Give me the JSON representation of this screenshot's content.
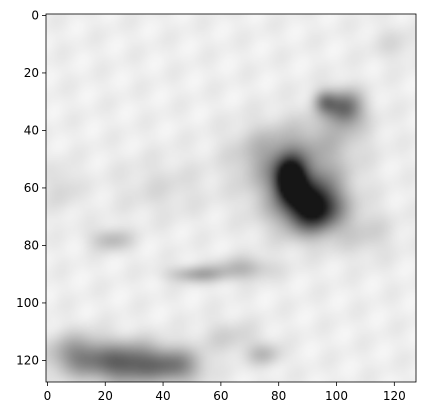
{
  "chart_data": {
    "type": "heatmap",
    "colormap": "gray",
    "colors": {
      "light": "#f5f5f5",
      "mid": "#b0b0b0",
      "dark": "#1a1a1a",
      "axis": "#000000"
    },
    "image_size": [
      128,
      128
    ],
    "x_ticks": [
      0,
      20,
      40,
      60,
      80,
      100,
      120
    ],
    "y_ticks": [
      0,
      20,
      40,
      60,
      80,
      100,
      120
    ],
    "xlim": [
      -0.5,
      127.5
    ],
    "ylim": [
      127.5,
      -0.5
    ],
    "y_axis_inverted": true,
    "grid": false,
    "blobs": [
      {
        "cx": 84,
        "cy": 57,
        "rx": 5,
        "ry": 7,
        "intensity": 0.88
      },
      {
        "cx": 92,
        "cy": 67,
        "rx": 9,
        "ry": 8,
        "intensity": 0.78
      },
      {
        "cx": 88,
        "cy": 60,
        "rx": 15,
        "ry": 14,
        "intensity": 0.42
      },
      {
        "cx": 78,
        "cy": 48,
        "rx": 14,
        "ry": 10,
        "intensity": 0.22
      },
      {
        "cx": 103,
        "cy": 32,
        "rx": 6,
        "ry": 6,
        "intensity": 0.5
      },
      {
        "cx": 96,
        "cy": 30,
        "rx": 4,
        "ry": 4,
        "intensity": 0.35
      },
      {
        "cx": 100,
        "cy": 40,
        "rx": 12,
        "ry": 10,
        "intensity": 0.15
      },
      {
        "cx": 28,
        "cy": 121,
        "rx": 14,
        "ry": 7,
        "intensity": 0.6
      },
      {
        "cx": 10,
        "cy": 118,
        "rx": 10,
        "ry": 7,
        "intensity": 0.35
      },
      {
        "cx": 45,
        "cy": 122,
        "rx": 9,
        "ry": 6,
        "intensity": 0.35
      },
      {
        "cx": 52,
        "cy": 90,
        "rx": 10,
        "ry": 3,
        "intensity": 0.28
      },
      {
        "cx": 68,
        "cy": 88,
        "rx": 10,
        "ry": 4,
        "intensity": 0.22
      },
      {
        "cx": 22,
        "cy": 78,
        "rx": 7,
        "ry": 4,
        "intensity": 0.22
      },
      {
        "cx": 40,
        "cy": 60,
        "rx": 16,
        "ry": 10,
        "intensity": 0.08
      },
      {
        "cx": 110,
        "cy": 76,
        "rx": 10,
        "ry": 8,
        "intensity": 0.12
      },
      {
        "cx": 63,
        "cy": 112,
        "rx": 10,
        "ry": 6,
        "intensity": 0.12
      },
      {
        "cx": 75,
        "cy": 118,
        "rx": 6,
        "ry": 4,
        "intensity": 0.2
      },
      {
        "cx": 5,
        "cy": 60,
        "rx": 6,
        "ry": 8,
        "intensity": 0.1
      },
      {
        "cx": 120,
        "cy": 10,
        "rx": 8,
        "ry": 6,
        "intensity": 0.08
      }
    ]
  }
}
